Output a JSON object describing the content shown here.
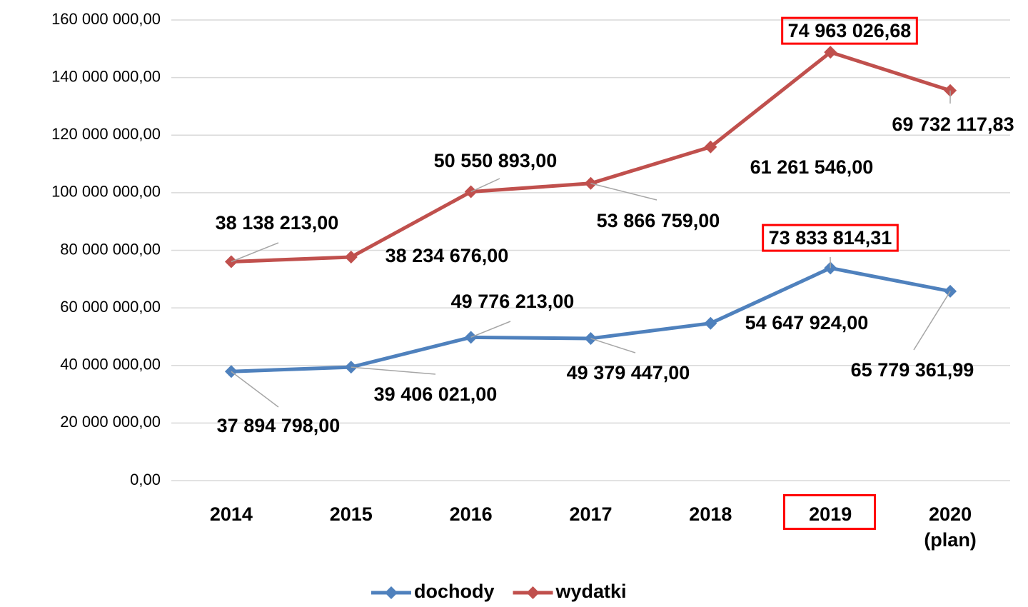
{
  "chart_data": {
    "type": "line",
    "stacked": true,
    "categories": [
      "2014",
      "2015",
      "2016",
      "2017",
      "2018",
      "2019",
      "2020\n(plan)"
    ],
    "series": [
      {
        "name": "dochody",
        "color": "#4f81bd",
        "values": [
          37894798.0,
          39406021.0,
          49776213.0,
          49379447.0,
          54647924.0,
          73833814.31,
          65779361.99
        ],
        "value_labels": [
          "37 894 798,00",
          "39 406 021,00",
          "49 776 213,00",
          "49 379 447,00",
          "54 647 924,00",
          "73 833 814,31",
          "65 779 361,99"
        ]
      },
      {
        "name": "wydatki",
        "color": "#c0504d",
        "values": [
          38138213.0,
          38234676.0,
          50550893.0,
          53866759.0,
          61261546.0,
          74963026.68,
          69732117.83
        ],
        "value_labels": [
          "38 138 213,00",
          "38 234 676,00",
          "50 550 893,00",
          "53 866 759,00",
          "61 261 546,00",
          "74 963 026,68",
          "69 732 117,83"
        ]
      }
    ],
    "ylim": [
      0,
      160000000
    ],
    "yticks": [
      {
        "value": 0,
        "label": "0,00"
      },
      {
        "value": 20000000,
        "label": "20 000 000,00"
      },
      {
        "value": 40000000,
        "label": "40 000 000,00"
      },
      {
        "value": 60000000,
        "label": "60 000 000,00"
      },
      {
        "value": 80000000,
        "label": "80 000 000,00"
      },
      {
        "value": 100000000,
        "label": "100 000 000,00"
      },
      {
        "value": 120000000,
        "label": "120 000 000,00"
      },
      {
        "value": 140000000,
        "label": "140 000 000,00"
      },
      {
        "value": 160000000,
        "label": "160 000 000,00"
      }
    ],
    "grid": true,
    "legend": "bottom",
    "highlight_index": 5,
    "highlight_color": "#ff0000"
  }
}
